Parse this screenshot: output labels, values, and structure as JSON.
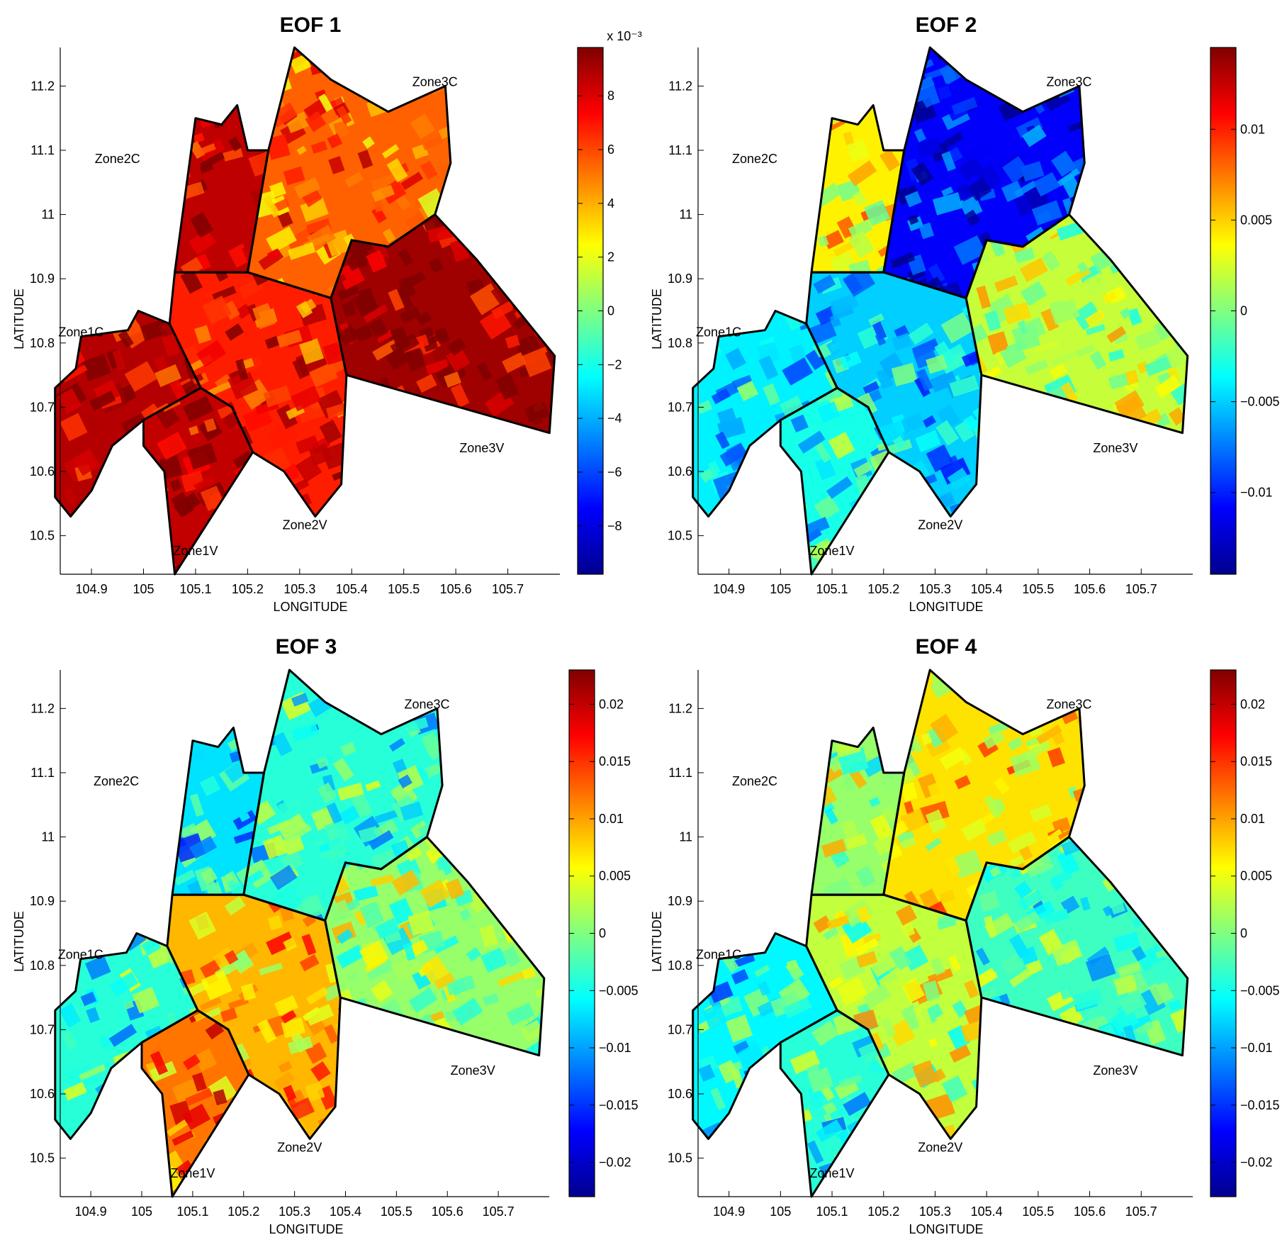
{
  "figure": {
    "colormap": [
      "#00008f",
      "#0000ff",
      "#0080ff",
      "#00ffff",
      "#80ff80",
      "#ffff00",
      "#ff8000",
      "#ff0000",
      "#800000"
    ],
    "outline_color": "#000000"
  },
  "chart_data": [
    {
      "type": "heatmap",
      "title": "EOF 1",
      "xlabel": "LONGITUDE",
      "ylabel": "LATITUDE",
      "xlim": [
        104.84,
        105.8
      ],
      "ylim": [
        10.44,
        11.26
      ],
      "xticks": [
        "104.9",
        "105",
        "105.1",
        "105.2",
        "105.3",
        "105.4",
        "105.5",
        "105.6",
        "105.7"
      ],
      "yticks": [
        "10.5",
        "10.6",
        "10.7",
        "10.8",
        "10.9",
        "11",
        "11.1",
        "11.2"
      ],
      "colorbar": {
        "range": [
          -0.0098,
          0.0098
        ],
        "ticks": [
          "8",
          "6",
          "4",
          "2",
          "0",
          "−2",
          "−4",
          "−6",
          "−8"
        ],
        "multiplier": "x 10⁻³"
      },
      "zones": [
        {
          "name": "Zone1C",
          "value": 0.0088
        },
        {
          "name": "Zone1V",
          "value": 0.0085
        },
        {
          "name": "Zone2C",
          "value": 0.0086
        },
        {
          "name": "Zone2V",
          "value": 0.0068
        },
        {
          "name": "Zone3C",
          "value": 0.0055
        },
        {
          "name": "Zone3V",
          "value": 0.0092
        }
      ]
    },
    {
      "type": "heatmap",
      "title": "EOF 2",
      "xlabel": "LONGITUDE",
      "ylabel": "LATITUDE",
      "xlim": [
        104.84,
        105.8
      ],
      "ylim": [
        10.44,
        11.26
      ],
      "xticks": [
        "104.9",
        "105",
        "105.1",
        "105.2",
        "105.3",
        "105.4",
        "105.5",
        "105.6",
        "105.7"
      ],
      "yticks": [
        "10.5",
        "10.6",
        "10.7",
        "10.8",
        "10.9",
        "11",
        "11.1",
        "11.2"
      ],
      "colorbar": {
        "range": [
          -0.0145,
          0.0145
        ],
        "ticks": [
          "0.01",
          "0.005",
          "0",
          "−0.005",
          "−0.01"
        ],
        "multiplier": ""
      },
      "zones": [
        {
          "name": "Zone1C",
          "value": -0.004
        },
        {
          "name": "Zone1V",
          "value": -0.003
        },
        {
          "name": "Zone2C",
          "value": 0.004
        },
        {
          "name": "Zone2V",
          "value": -0.005
        },
        {
          "name": "Zone3C",
          "value": -0.011
        },
        {
          "name": "Zone3V",
          "value": 0.002
        }
      ]
    },
    {
      "type": "heatmap",
      "title": "EOF 3",
      "xlabel": "LONGITUDE",
      "ylabel": "LATITUDE",
      "xlim": [
        104.84,
        105.8
      ],
      "ylim": [
        10.44,
        11.26
      ],
      "xticks": [
        "104.9",
        "105",
        "105.1",
        "105.2",
        "105.3",
        "105.4",
        "105.5",
        "105.6",
        "105.7"
      ],
      "yticks": [
        "10.5",
        "10.6",
        "10.7",
        "10.8",
        "10.9",
        "11",
        "11.1",
        "11.2"
      ],
      "colorbar": {
        "range": [
          -0.023,
          0.023
        ],
        "ticks": [
          "0.02",
          "0.015",
          "0.01",
          "0.005",
          "0",
          "−0.005",
          "−0.01",
          "−0.015",
          "−0.02"
        ],
        "multiplier": ""
      },
      "zones": [
        {
          "name": "Zone1C",
          "value": -0.004
        },
        {
          "name": "Zone1V",
          "value": 0.012
        },
        {
          "name": "Zone2C",
          "value": -0.007
        },
        {
          "name": "Zone2V",
          "value": 0.009
        },
        {
          "name": "Zone3C",
          "value": -0.004
        },
        {
          "name": "Zone3V",
          "value": 0.001
        }
      ]
    },
    {
      "type": "heatmap",
      "title": "EOF 4",
      "xlabel": "LONGITUDE",
      "ylabel": "LATITUDE",
      "xlim": [
        104.84,
        105.8
      ],
      "ylim": [
        10.44,
        11.26
      ],
      "xticks": [
        "104.9",
        "105",
        "105.1",
        "105.2",
        "105.3",
        "105.4",
        "105.5",
        "105.6",
        "105.7"
      ],
      "yticks": [
        "10.5",
        "10.6",
        "10.7",
        "10.8",
        "10.9",
        "11",
        "11.1",
        "11.2"
      ],
      "colorbar": {
        "range": [
          -0.023,
          0.023
        ],
        "ticks": [
          "0.02",
          "0.015",
          "0.01",
          "0.005",
          "0",
          "−0.005",
          "−0.01",
          "−0.015",
          "−0.02"
        ],
        "multiplier": ""
      },
      "zones": [
        {
          "name": "Zone1C",
          "value": -0.006
        },
        {
          "name": "Zone1V",
          "value": -0.004
        },
        {
          "name": "Zone2C",
          "value": 0.001
        },
        {
          "name": "Zone2V",
          "value": 0.003
        },
        {
          "name": "Zone3C",
          "value": 0.007
        },
        {
          "name": "Zone3V",
          "value": -0.003
        }
      ]
    }
  ]
}
